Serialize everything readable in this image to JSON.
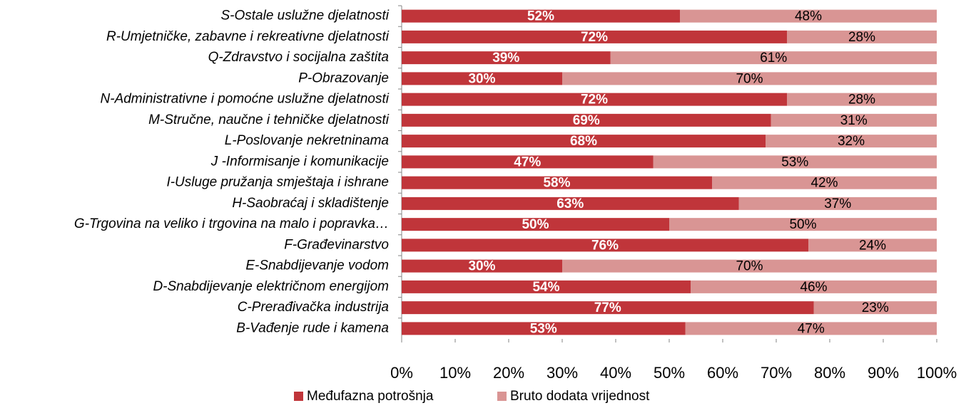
{
  "chart_data": {
    "type": "stacked-bar-horizontal",
    "categories": [
      "S-Ostale uslužne djelatnosti",
      "R-Umjetničke, zabavne i rekreativne djelatnosti",
      "Q-Zdravstvo i socijalna zaštita",
      "P-Obrazovanje",
      "N-Administrativne i pomoćne uslužne djelatnosti",
      "M-Stručne, naučne i tehničke djelatnosti",
      "L-Poslovanje nekretninama",
      "J -Informisanje i komunikacije",
      "I-Usluge pružanja smještaja i ishrane",
      "H-Saobraćaj i skladištenje",
      "G-Trgovina na veliko i trgovina na malo i popravka…",
      "F-Građevinarstvo",
      "E-Snabdijevanje vodom",
      "D-Snabdijevanje električnom energijom",
      "C-Prerađivačka industrija",
      "B-Vađenje rude i kamena"
    ],
    "series": [
      {
        "name": "Međufazna potrošnja",
        "color": "#c0353a",
        "values": [
          52,
          72,
          39,
          30,
          72,
          69,
          68,
          47,
          58,
          63,
          50,
          76,
          30,
          54,
          77,
          53
        ],
        "value_labels": [
          "52%",
          "72%",
          "39%",
          "30%",
          "72%",
          "69%",
          "68%",
          "47%",
          "58%",
          "63%",
          "50%",
          "76%",
          "30%",
          "54%",
          "77%",
          "53%"
        ]
      },
      {
        "name": "Bruto dodata vrijednost",
        "color": "#d99594",
        "values": [
          48,
          28,
          61,
          70,
          28,
          31,
          32,
          53,
          42,
          37,
          50,
          24,
          70,
          46,
          23,
          47
        ],
        "value_labels": [
          "48%",
          "28%",
          "61%",
          "70%",
          "28%",
          "31%",
          "32%",
          "53%",
          "42%",
          "37%",
          "50%",
          "24%",
          "70%",
          "46%",
          "23%",
          "47%"
        ]
      }
    ],
    "xlim": [
      0,
      100
    ],
    "xticks": [
      {
        "value": 0,
        "label": "0%"
      },
      {
        "value": 10,
        "label": "10%"
      },
      {
        "value": 20,
        "label": "20%"
      },
      {
        "value": 30,
        "label": "30%"
      },
      {
        "value": 40,
        "label": "40%"
      },
      {
        "value": 50,
        "label": "50%"
      },
      {
        "value": 60,
        "label": "60%"
      },
      {
        "value": 70,
        "label": "70%"
      },
      {
        "value": 80,
        "label": "80%"
      },
      {
        "value": 90,
        "label": "90%"
      },
      {
        "value": 100,
        "label": "100%"
      }
    ],
    "legend": "bottom"
  }
}
